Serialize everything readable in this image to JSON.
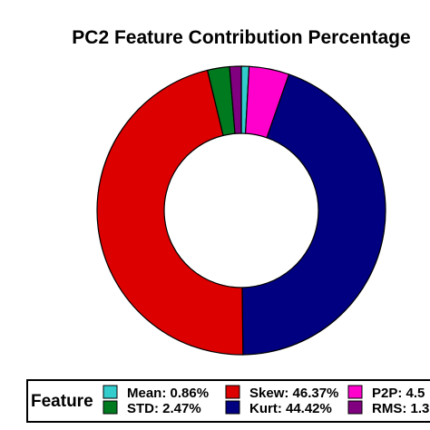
{
  "chart_data": {
    "type": "pie",
    "donut": true,
    "title": "PC2 Feature Contribution Percentage",
    "legend": {
      "title": "Feature",
      "placement": "bottom"
    },
    "slices": [
      {
        "name": "Mean",
        "value": 0.86,
        "label": "Mean: 0.86%",
        "color": "#33cccc"
      },
      {
        "name": "P2P",
        "value": 4.5,
        "label": "P2P: 4.5",
        "color": "#ff00cc"
      },
      {
        "name": "Kurt",
        "value": 44.42,
        "label": "Kurt: 44.42%",
        "color": "#000080"
      },
      {
        "name": "Skew",
        "value": 46.37,
        "label": "Skew: 46.37%",
        "color": "#dd0000"
      },
      {
        "name": "STD",
        "value": 2.47,
        "label": "STD: 2.47%",
        "color": "#007a1f"
      },
      {
        "name": "RMS",
        "value": 1.3,
        "label": "RMS: 1.3",
        "color": "#800080"
      }
    ],
    "legend_order": [
      "Mean",
      "STD",
      "Skew",
      "Kurt",
      "P2P",
      "RMS"
    ]
  }
}
